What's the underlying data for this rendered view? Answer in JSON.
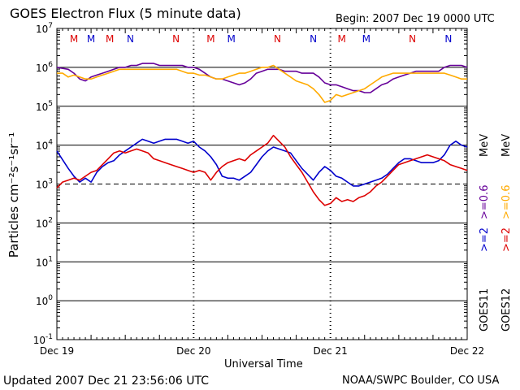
{
  "chart_data": {
    "type": "line",
    "title": "GOES Electron Flux (5 minute data)",
    "begin_label": "Begin: 2007 Dec 19 0000 UTC",
    "xlabel": "Universal Time",
    "ylabel": "Particles cm⁻²s⁻¹sr⁻¹",
    "updated_label": "Updated 2007 Dec 21 23:56:06 UTC",
    "source_label": "NOAA/SWPC Boulder, CO USA",
    "x_range_hours": [
      0,
      72
    ],
    "x_ticks": [
      {
        "hour": 0,
        "label": "Dec 19"
      },
      {
        "hour": 24,
        "label": "Dec 20"
      },
      {
        "hour": 48,
        "label": "Dec 21"
      },
      {
        "hour": 72,
        "label": "Dec 22"
      }
    ],
    "y_scale": "log",
    "y_range_exp": [
      -1,
      7
    ],
    "y_ticks": [
      {
        "exp": 7,
        "label": "10^7"
      },
      {
        "exp": 6,
        "label": "10^6"
      },
      {
        "exp": 5,
        "label": "10^5"
      },
      {
        "exp": 4,
        "label": "10^4"
      },
      {
        "exp": 3,
        "label": "10^3"
      },
      {
        "exp": 2,
        "label": "10^2"
      },
      {
        "exp": 1,
        "label": "10^1"
      },
      {
        "exp": 0,
        "label": "10^0"
      },
      {
        "exp": -1,
        "label": "10^-1"
      }
    ],
    "threshold_exp": 3,
    "mn_markers": [
      {
        "hour": 9.3,
        "label": "M",
        "color": "#dd0000"
      },
      {
        "hour": 12.9,
        "label": "N",
        "color": "#0000cc"
      },
      {
        "hour": 20.9,
        "label": "N",
        "color": "#dd0000"
      },
      {
        "hour": 27.0,
        "label": "M",
        "color": "#dd0000"
      },
      {
        "hour": 30.6,
        "label": "M",
        "color": "#0000cc"
      },
      {
        "hour": 38.7,
        "label": "N",
        "color": "#dd0000"
      },
      {
        "hour": 45.0,
        "label": "N",
        "color": "#0000cc"
      },
      {
        "hour": 50.0,
        "label": "M",
        "color": "#dd0000"
      },
      {
        "hour": 54.3,
        "label": "M",
        "color": "#0000cc"
      },
      {
        "hour": 62.4,
        "label": "N",
        "color": "#dd0000"
      },
      {
        "hour": 68.7,
        "label": "N",
        "color": "#0000cc"
      },
      {
        "hour": 3.0,
        "label": "M",
        "color": "#dd0000"
      },
      {
        "hour": 6.0,
        "label": "M",
        "color": "#0000cc"
      }
    ],
    "legend": [
      {
        "name": ">=2",
        "color": "#0000cc"
      },
      {
        "name": ">=0.6",
        "color": "#660099"
      },
      {
        "name": ">=2",
        "color": "#dd0000"
      },
      {
        "name": ">=0.6",
        "color": "#ffaa00"
      },
      {
        "name": "MeV",
        "color": "#000000"
      },
      {
        "name": "MeV",
        "color": "#000000"
      },
      {
        "name": "GOES11",
        "color": "#000000"
      },
      {
        "name": "GOES12",
        "color": "#000000"
      }
    ],
    "series": [
      {
        "name": "GOES11 >=2 MeV",
        "color": "#0000cc",
        "x": [
          0,
          2,
          3,
          4,
          5,
          6,
          7,
          8,
          9,
          10,
          11,
          12,
          13,
          14,
          15,
          16,
          17,
          18,
          19,
          20,
          21,
          22,
          23,
          24,
          25,
          26,
          27,
          28,
          29,
          30,
          31,
          32,
          33,
          34,
          35,
          36,
          37,
          38,
          39,
          40,
          41,
          42,
          43,
          44,
          45,
          46,
          47,
          48,
          49,
          50,
          51,
          52,
          53,
          54,
          55,
          56,
          57,
          58,
          59,
          60,
          61,
          62,
          63,
          64,
          65,
          66,
          67,
          68,
          69,
          70,
          71,
          72
        ],
        "y_log10": [
          3.85,
          3.4,
          3.2,
          3.05,
          3.15,
          3.05,
          3.3,
          3.45,
          3.55,
          3.6,
          3.75,
          3.85,
          3.95,
          4.05,
          4.15,
          4.1,
          4.05,
          4.1,
          4.15,
          4.15,
          4.15,
          4.1,
          4.05,
          4.1,
          3.95,
          3.85,
          3.7,
          3.5,
          3.2,
          3.15,
          3.15,
          3.1,
          3.2,
          3.3,
          3.5,
          3.7,
          3.85,
          3.95,
          3.9,
          3.85,
          3.8,
          3.6,
          3.4,
          3.25,
          3.1,
          3.3,
          3.45,
          3.35,
          3.2,
          3.15,
          3.05,
          2.95,
          2.95,
          3.0,
          3.05,
          3.1,
          3.15,
          3.25,
          3.4,
          3.55,
          3.65,
          3.65,
          3.6,
          3.55,
          3.55,
          3.55,
          3.6,
          3.75,
          4.0,
          4.1,
          4.0,
          3.95
        ]
      },
      {
        "name": "GOES12 >=2 MeV",
        "color": "#dd0000",
        "x": [
          0,
          1,
          2,
          3,
          4,
          5,
          6,
          7,
          8,
          9,
          10,
          11,
          12,
          13,
          14,
          15,
          16,
          17,
          18,
          19,
          20,
          21,
          22,
          23,
          24,
          25,
          26,
          27,
          28,
          29,
          30,
          31,
          32,
          33,
          34,
          35,
          36,
          37,
          38,
          39,
          40,
          41,
          42,
          43,
          44,
          45,
          46,
          47,
          48,
          49,
          50,
          51,
          52,
          53,
          54,
          55,
          56,
          57,
          58,
          59,
          60,
          61,
          62,
          63,
          64,
          65,
          66,
          67,
          68,
          69,
          70,
          71,
          72
        ],
        "y_log10": [
          2.9,
          3.05,
          3.1,
          3.15,
          3.1,
          3.2,
          3.3,
          3.35,
          3.5,
          3.65,
          3.8,
          3.85,
          3.8,
          3.85,
          3.9,
          3.85,
          3.8,
          3.65,
          3.6,
          3.55,
          3.5,
          3.45,
          3.4,
          3.35,
          3.3,
          3.35,
          3.3,
          3.1,
          3.3,
          3.45,
          3.55,
          3.6,
          3.65,
          3.6,
          3.75,
          3.85,
          3.95,
          4.05,
          4.25,
          4.1,
          3.95,
          3.7,
          3.5,
          3.3,
          3.05,
          2.8,
          2.6,
          2.45,
          2.5,
          2.65,
          2.55,
          2.6,
          2.55,
          2.65,
          2.7,
          2.8,
          2.95,
          3.05,
          3.2,
          3.35,
          3.5,
          3.55,
          3.6,
          3.65,
          3.7,
          3.75,
          3.7,
          3.65,
          3.6,
          3.5,
          3.45,
          3.4,
          3.35
        ]
      },
      {
        "name": "GOES11 >=0.6 MeV",
        "color": "#660099",
        "x": [
          0,
          2,
          3,
          4,
          5,
          6,
          7,
          8,
          9,
          10,
          11,
          12,
          13,
          14,
          15,
          16,
          17,
          18,
          19,
          20,
          21,
          22,
          23,
          24,
          25,
          26,
          27,
          28,
          29,
          30,
          31,
          32,
          33,
          34,
          35,
          36,
          37,
          38,
          39,
          40,
          41,
          42,
          43,
          44,
          45,
          46,
          47,
          48,
          49,
          50,
          51,
          52,
          53,
          54,
          55,
          56,
          57,
          58,
          59,
          60,
          61,
          62,
          63,
          64,
          65,
          66,
          67,
          68,
          69,
          70,
          71,
          72
        ],
        "y_log10": [
          6.0,
          5.95,
          5.85,
          5.7,
          5.65,
          5.75,
          5.8,
          5.85,
          5.9,
          5.95,
          6.0,
          6.0,
          6.05,
          6.05,
          6.1,
          6.1,
          6.1,
          6.05,
          6.05,
          6.05,
          6.05,
          6.05,
          6.0,
          6.0,
          5.95,
          5.85,
          5.75,
          5.7,
          5.7,
          5.65,
          5.6,
          5.55,
          5.6,
          5.7,
          5.85,
          5.9,
          5.95,
          5.95,
          5.95,
          5.9,
          5.9,
          5.9,
          5.85,
          5.85,
          5.85,
          5.75,
          5.6,
          5.55,
          5.55,
          5.5,
          5.45,
          5.4,
          5.4,
          5.35,
          5.35,
          5.45,
          5.55,
          5.6,
          5.7,
          5.75,
          5.8,
          5.85,
          5.9,
          5.9,
          5.9,
          5.9,
          5.9,
          6.0,
          6.05,
          6.05,
          6.05,
          6.0
        ]
      },
      {
        "name": "GOES12 >=0.6 MeV",
        "color": "#ffaa00",
        "x": [
          0,
          1,
          2,
          3,
          4,
          5,
          6,
          7,
          8,
          9,
          10,
          11,
          12,
          13,
          14,
          15,
          16,
          17,
          18,
          19,
          20,
          21,
          22,
          23,
          24,
          25,
          26,
          27,
          28,
          29,
          30,
          31,
          32,
          33,
          34,
          35,
          36,
          37,
          38,
          39,
          40,
          41,
          42,
          43,
          44,
          45,
          46,
          47,
          48,
          49,
          50,
          51,
          52,
          53,
          54,
          55,
          56,
          57,
          58,
          59,
          60,
          61,
          62,
          63,
          64,
          65,
          66,
          67,
          68,
          69,
          70,
          71,
          72
        ],
        "y_log10": [
          5.85,
          5.85,
          5.75,
          5.8,
          5.75,
          5.7,
          5.7,
          5.75,
          5.8,
          5.85,
          5.9,
          5.95,
          5.95,
          5.95,
          5.95,
          5.95,
          5.95,
          5.95,
          5.95,
          5.95,
          5.95,
          5.95,
          5.9,
          5.85,
          5.85,
          5.8,
          5.8,
          5.75,
          5.7,
          5.7,
          5.75,
          5.8,
          5.85,
          5.85,
          5.9,
          5.95,
          6.0,
          6.0,
          6.05,
          5.95,
          5.85,
          5.75,
          5.65,
          5.6,
          5.55,
          5.45,
          5.3,
          5.1,
          5.15,
          5.3,
          5.25,
          5.3,
          5.35,
          5.4,
          5.45,
          5.55,
          5.65,
          5.75,
          5.8,
          5.85,
          5.85,
          5.85,
          5.85,
          5.85,
          5.85,
          5.85,
          5.85,
          5.85,
          5.85,
          5.8,
          5.75,
          5.7,
          5.7
        ]
      }
    ]
  }
}
